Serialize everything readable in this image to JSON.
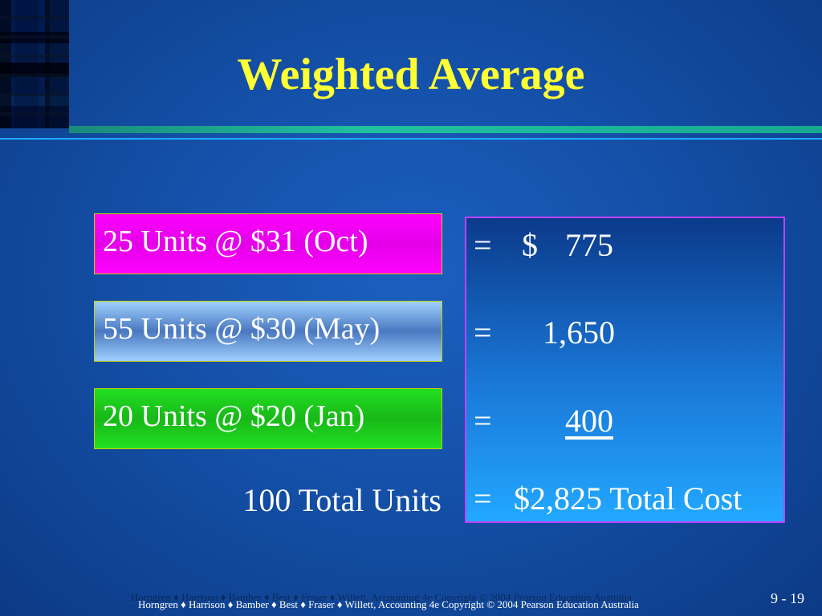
{
  "slide": {
    "title": "Weighted Average",
    "units": [
      {
        "label": "25 Units @ $31 (Oct)"
      },
      {
        "label": "55 Units @ $30 (May)"
      },
      {
        "label": "20 Units @ $20 (Jan)"
      }
    ],
    "total_units": "100 Total Units",
    "costs": {
      "equals": "=",
      "dollar_sign": "$",
      "row1": "775",
      "row2": "1,650",
      "row3": "400",
      "total": "$2,825 Total Cost"
    },
    "footer": "Horngren ♦ Harrison ♦ Bamber ♦ Best ♦ Fraser ♦ Willett, Accounting 4e Copyright © 2004 Pearson Education Australia",
    "slide_number": "9 - 19"
  },
  "colors": {
    "title": "#ffff33",
    "box_oct": "#ff00ff",
    "box_may": "#6a9ae0",
    "box_jan": "#22e022",
    "panel_border": "#c040ff"
  }
}
